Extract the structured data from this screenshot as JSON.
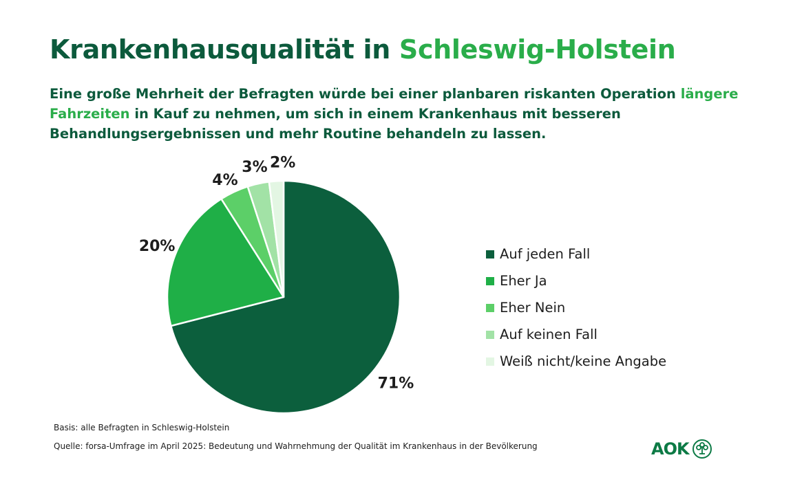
{
  "header": {
    "title_main": "Krankenhausqualität in",
    "title_accent": "Schleswig-Holstein",
    "subtitle_part1": "Eine große Mehrheit der Befragten würde bei einer planbaren riskanten Operation",
    "subtitle_accent": "längere Fahrzeiten",
    "subtitle_part2": "in Kauf zu nehmen, um sich in einem Krankenhaus mit besseren Behandlungsergebnissen und mehr Routine behandeln zu lassen."
  },
  "chart_data": {
    "type": "pie",
    "categories": [
      "Auf jeden Fall",
      "Eher Ja",
      "Eher Nein",
      "Auf keinen Fall",
      "Weiß nicht/keine Angabe"
    ],
    "values": [
      71,
      20,
      4,
      3,
      2
    ],
    "value_labels": [
      "71%",
      "20%",
      "4%",
      "3%",
      "2%"
    ],
    "colors": [
      "#0c5f3d",
      "#1faf47",
      "#5ccf68",
      "#a2e2a6",
      "#e3f6e3"
    ],
    "start": "12 o'clock",
    "direction": "clockwise",
    "legend_position": "right"
  },
  "footer": {
    "basis": "Basis: alle Befragten in Schleswig-Holstein",
    "source": "Quelle: forsa-Umfrage im April 2025: Bedeutung und Wahrnehmung der Qualität im Krankenhaus in der Bevölkerung"
  },
  "logo": {
    "text": "AOK",
    "icon": "aok-tree-logo-icon",
    "color": "#0c7a45"
  }
}
